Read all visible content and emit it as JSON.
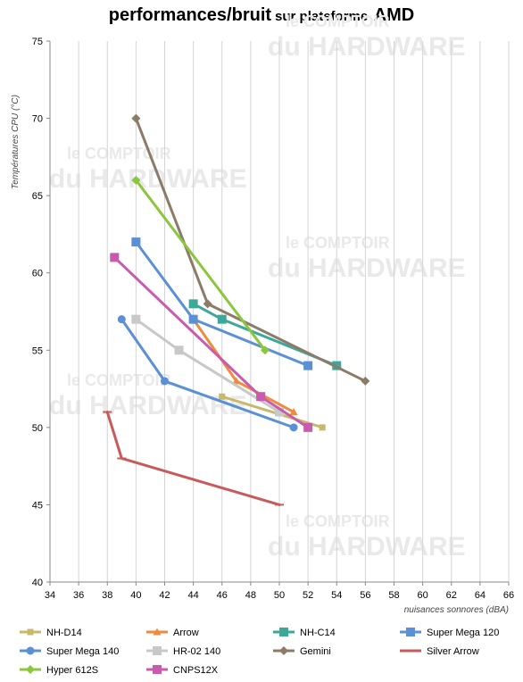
{
  "title": {
    "main": "performances/bruit",
    "sub": "sur plateforme",
    "brand": "AMD"
  },
  "watermark": {
    "line1": "le COMPTOIR",
    "line2": "du HARDWARE"
  },
  "chart_data": {
    "type": "line",
    "title": "performances/bruit sur plateforme AMD",
    "xlabel": "nuisances sonnores (dBA)",
    "ylabel": "Températures CPU (°C)",
    "xlim": [
      34,
      66
    ],
    "ylim": [
      40,
      75
    ],
    "xticks": [
      34,
      36,
      38,
      40,
      42,
      44,
      46,
      48,
      50,
      52,
      54,
      56,
      58,
      60,
      62,
      64,
      66
    ],
    "yticks": [
      40,
      45,
      50,
      55,
      60,
      65,
      70,
      75
    ],
    "grid": "vertical",
    "legend_position": "bottom",
    "series": [
      {
        "name": "NH-D14",
        "color": "#C8B86C",
        "marker": "square-small",
        "points": [
          [
            46,
            52
          ],
          [
            53,
            50
          ]
        ]
      },
      {
        "name": "Arrow",
        "color": "#F08A3C",
        "marker": "triangle",
        "points": [
          [
            44,
            57
          ],
          [
            47,
            53
          ],
          [
            51,
            51
          ]
        ]
      },
      {
        "name": "NH-C14",
        "color": "#3DA89A",
        "marker": "square",
        "points": [
          [
            44,
            58
          ],
          [
            46,
            57
          ],
          [
            54,
            54
          ]
        ]
      },
      {
        "name": "Super Mega 120",
        "color": "#5B8FD6",
        "marker": "square",
        "points": [
          [
            40,
            62
          ],
          [
            44,
            57
          ],
          [
            52,
            54
          ]
        ]
      },
      {
        "name": "Super Mega 140",
        "color": "#5B8FD6",
        "marker": "circle",
        "points": [
          [
            39,
            57
          ],
          [
            42,
            53
          ],
          [
            51,
            50
          ]
        ]
      },
      {
        "name": "HR-02 140",
        "color": "#C8C8C8",
        "marker": "square",
        "points": [
          [
            40,
            57
          ],
          [
            43,
            55
          ],
          [
            50,
            51
          ]
        ]
      },
      {
        "name": "Gemini",
        "color": "#8B7B68",
        "marker": "diamond",
        "points": [
          [
            40,
            70
          ],
          [
            45,
            58
          ],
          [
            56,
            53
          ]
        ]
      },
      {
        "name": "Silver Arrow",
        "color": "#C85A5A",
        "marker": "dash",
        "points": [
          [
            38,
            51
          ],
          [
            39,
            48
          ],
          [
            50,
            45
          ]
        ]
      },
      {
        "name": "Hyper 612S",
        "color": "#8CC63E",
        "marker": "diamond",
        "points": [
          [
            40,
            66
          ],
          [
            49,
            55
          ]
        ]
      },
      {
        "name": "CNPS12X",
        "color": "#C85BAE",
        "marker": "square",
        "points": [
          [
            38.5,
            61
          ],
          [
            48.7,
            52
          ],
          [
            52,
            50
          ]
        ]
      }
    ]
  }
}
